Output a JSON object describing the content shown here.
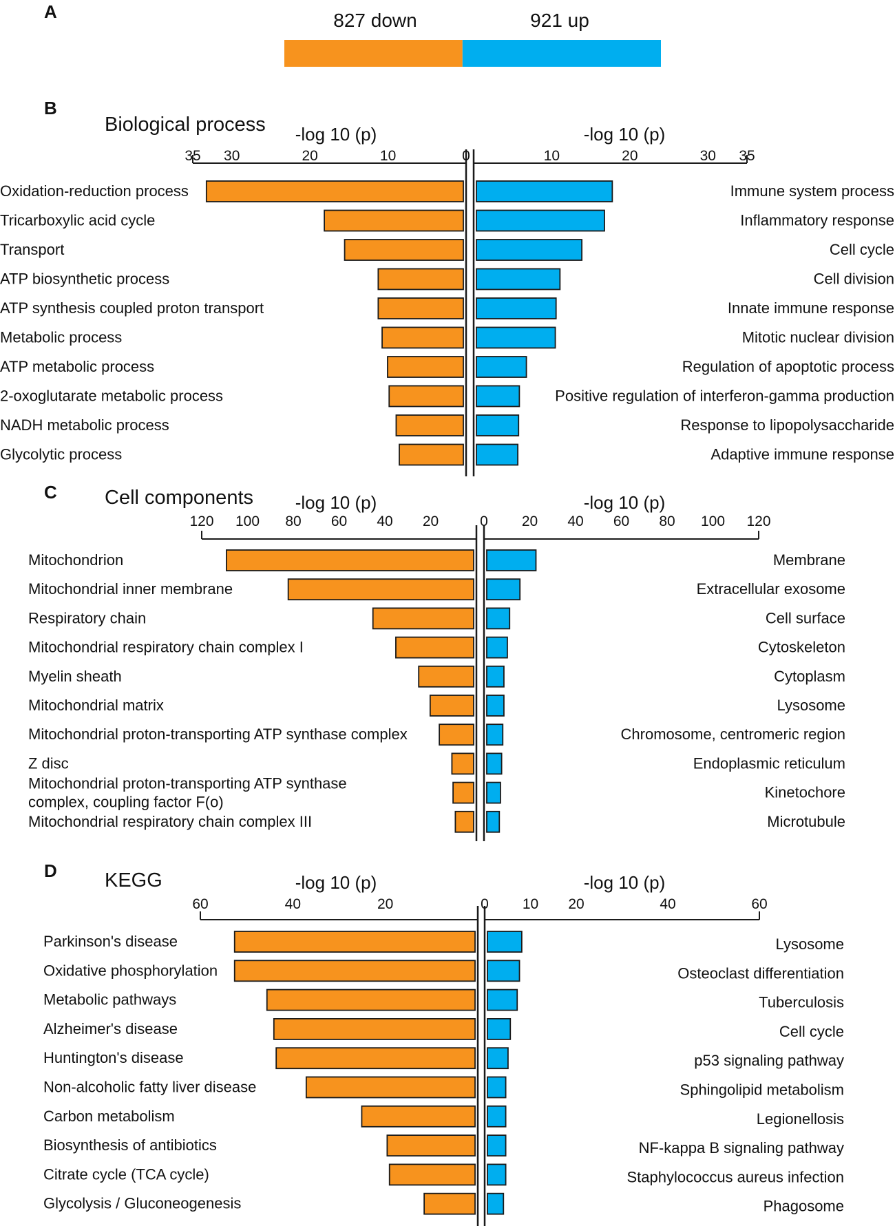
{
  "colors": {
    "down": "#F7931E",
    "up": "#00AEEF",
    "stroke": "#1a1a1a"
  },
  "summary": {
    "panel_label": "A",
    "down_label": "827 down",
    "up_label": "921 up",
    "down_count": 827,
    "up_count": 921
  },
  "chart_data": [
    {
      "panel_label": "B",
      "type": "bar",
      "orientation": "horizontal",
      "layout": "diverging",
      "title": "Biological process",
      "xlabel_left": "-log 10 (p)",
      "xlabel_right": "-log 10 (p)",
      "xlim": [
        0,
        35
      ],
      "ticks_left": [
        35,
        30,
        20,
        10,
        0
      ],
      "ticks_right": [
        10,
        20,
        30,
        35
      ],
      "down": {
        "name": "down",
        "categories": [
          "Oxidation-reduction process",
          "Tricarboxylic acid cycle",
          "Transport",
          "ATP biosynthetic process",
          "ATP synthesis coupled proton transport",
          "Metabolic process",
          "ATP metabolic process",
          "2-oxoglutarate metabolic process",
          "NADH metabolic process",
          "Glycolytic process"
        ],
        "values": [
          32.9,
          17.8,
          15.2,
          10.9,
          10.9,
          10.4,
          9.7,
          9.5,
          8.6,
          8.2
        ]
      },
      "up": {
        "name": "up",
        "categories": [
          "Immune system process",
          "Inflammatory response",
          "Cell cycle",
          "Cell division",
          "Innate immune response",
          "Mitotic nuclear division",
          "Regulation of apoptotic process",
          "Positive regulation of interferon-gamma production",
          "Response to lipopolysaccharide",
          "Adaptive immune response"
        ],
        "values": [
          17.4,
          16.4,
          13.5,
          10.7,
          10.2,
          10.1,
          6.4,
          5.5,
          5.4,
          5.3
        ]
      }
    },
    {
      "panel_label": "C",
      "type": "bar",
      "orientation": "horizontal",
      "layout": "diverging",
      "title": "Cell components",
      "xlabel_left": "-log 10 (p)",
      "xlabel_right": "-log 10 (p)",
      "xlim": [
        0,
        120
      ],
      "ticks_left": [
        120,
        100,
        80,
        60,
        40,
        20
      ],
      "ticks_right": [
        0,
        20,
        40,
        60,
        80,
        100,
        120
      ],
      "down": {
        "name": "down",
        "categories": [
          "Mitochondrion",
          "Mitochondrial inner membrane",
          "Respiratory chain",
          "Mitochondrial respiratory chain complex I",
          "Myelin sheath",
          "Mitochondrial matrix",
          "Mitochondrial proton-transporting ATP synthase complex",
          "Z disc",
          "Mitochondrial proton-transporting ATP synthase\ncomplex, coupling factor F(o)",
          "Mitochondrial respiratory chain complex III"
        ],
        "values": [
          108,
          81,
          44,
          34,
          24,
          19,
          15,
          9.5,
          9,
          8
        ]
      },
      "up": {
        "name": "up",
        "categories": [
          "Membrane",
          "Extracellular exosome",
          "Cell surface",
          "Cytoskeleton",
          "Cytoplasm",
          "Lysosome",
          "Chromosome, centromeric region",
          "Endoplasmic reticulum",
          "Kinetochore",
          "Microtubule"
        ],
        "values": [
          21.5,
          14.5,
          10,
          9,
          7.5,
          7.5,
          7,
          6.5,
          6,
          5.5
        ]
      }
    },
    {
      "panel_label": "D",
      "type": "bar",
      "orientation": "horizontal",
      "layout": "diverging",
      "title": "KEGG",
      "xlabel_left": "-log 10 (p)",
      "xlabel_right": "-log 10 (p)",
      "xlim": [
        0,
        60
      ],
      "ticks_left": [
        60,
        40,
        20
      ],
      "ticks_right": [
        0,
        10,
        20,
        40,
        60
      ],
      "down": {
        "name": "down",
        "categories": [
          "Parkinson's disease",
          "Oxidative phosphorylation",
          "Metabolic pathways",
          "Alzheimer's disease",
          "Huntington's disease",
          "Non-alcoholic fatty liver disease",
          "Carbon metabolism",
          "Biosynthesis of antibiotics",
          "Citrate cycle (TCA cycle)",
          "Glycolysis / Gluconeogenesis"
        ],
        "values": [
          52,
          52,
          45,
          43.5,
          43,
          36.5,
          24.5,
          19,
          18.5,
          11
        ]
      },
      "up": {
        "name": "up",
        "categories": [
          "Lysosome",
          "Osteoclast differentiation",
          "Tuberculosis",
          "Cell cycle",
          "p53 signaling pathway",
          "Sphingolipid metabolism",
          "Legionellosis",
          "NF-kappa B signaling pathway",
          "Staphylococcus aureus infection",
          "Phagosome"
        ],
        "values": [
          7.5,
          7,
          6.5,
          5,
          4.5,
          4,
          4,
          4,
          4,
          3.5
        ]
      }
    }
  ]
}
